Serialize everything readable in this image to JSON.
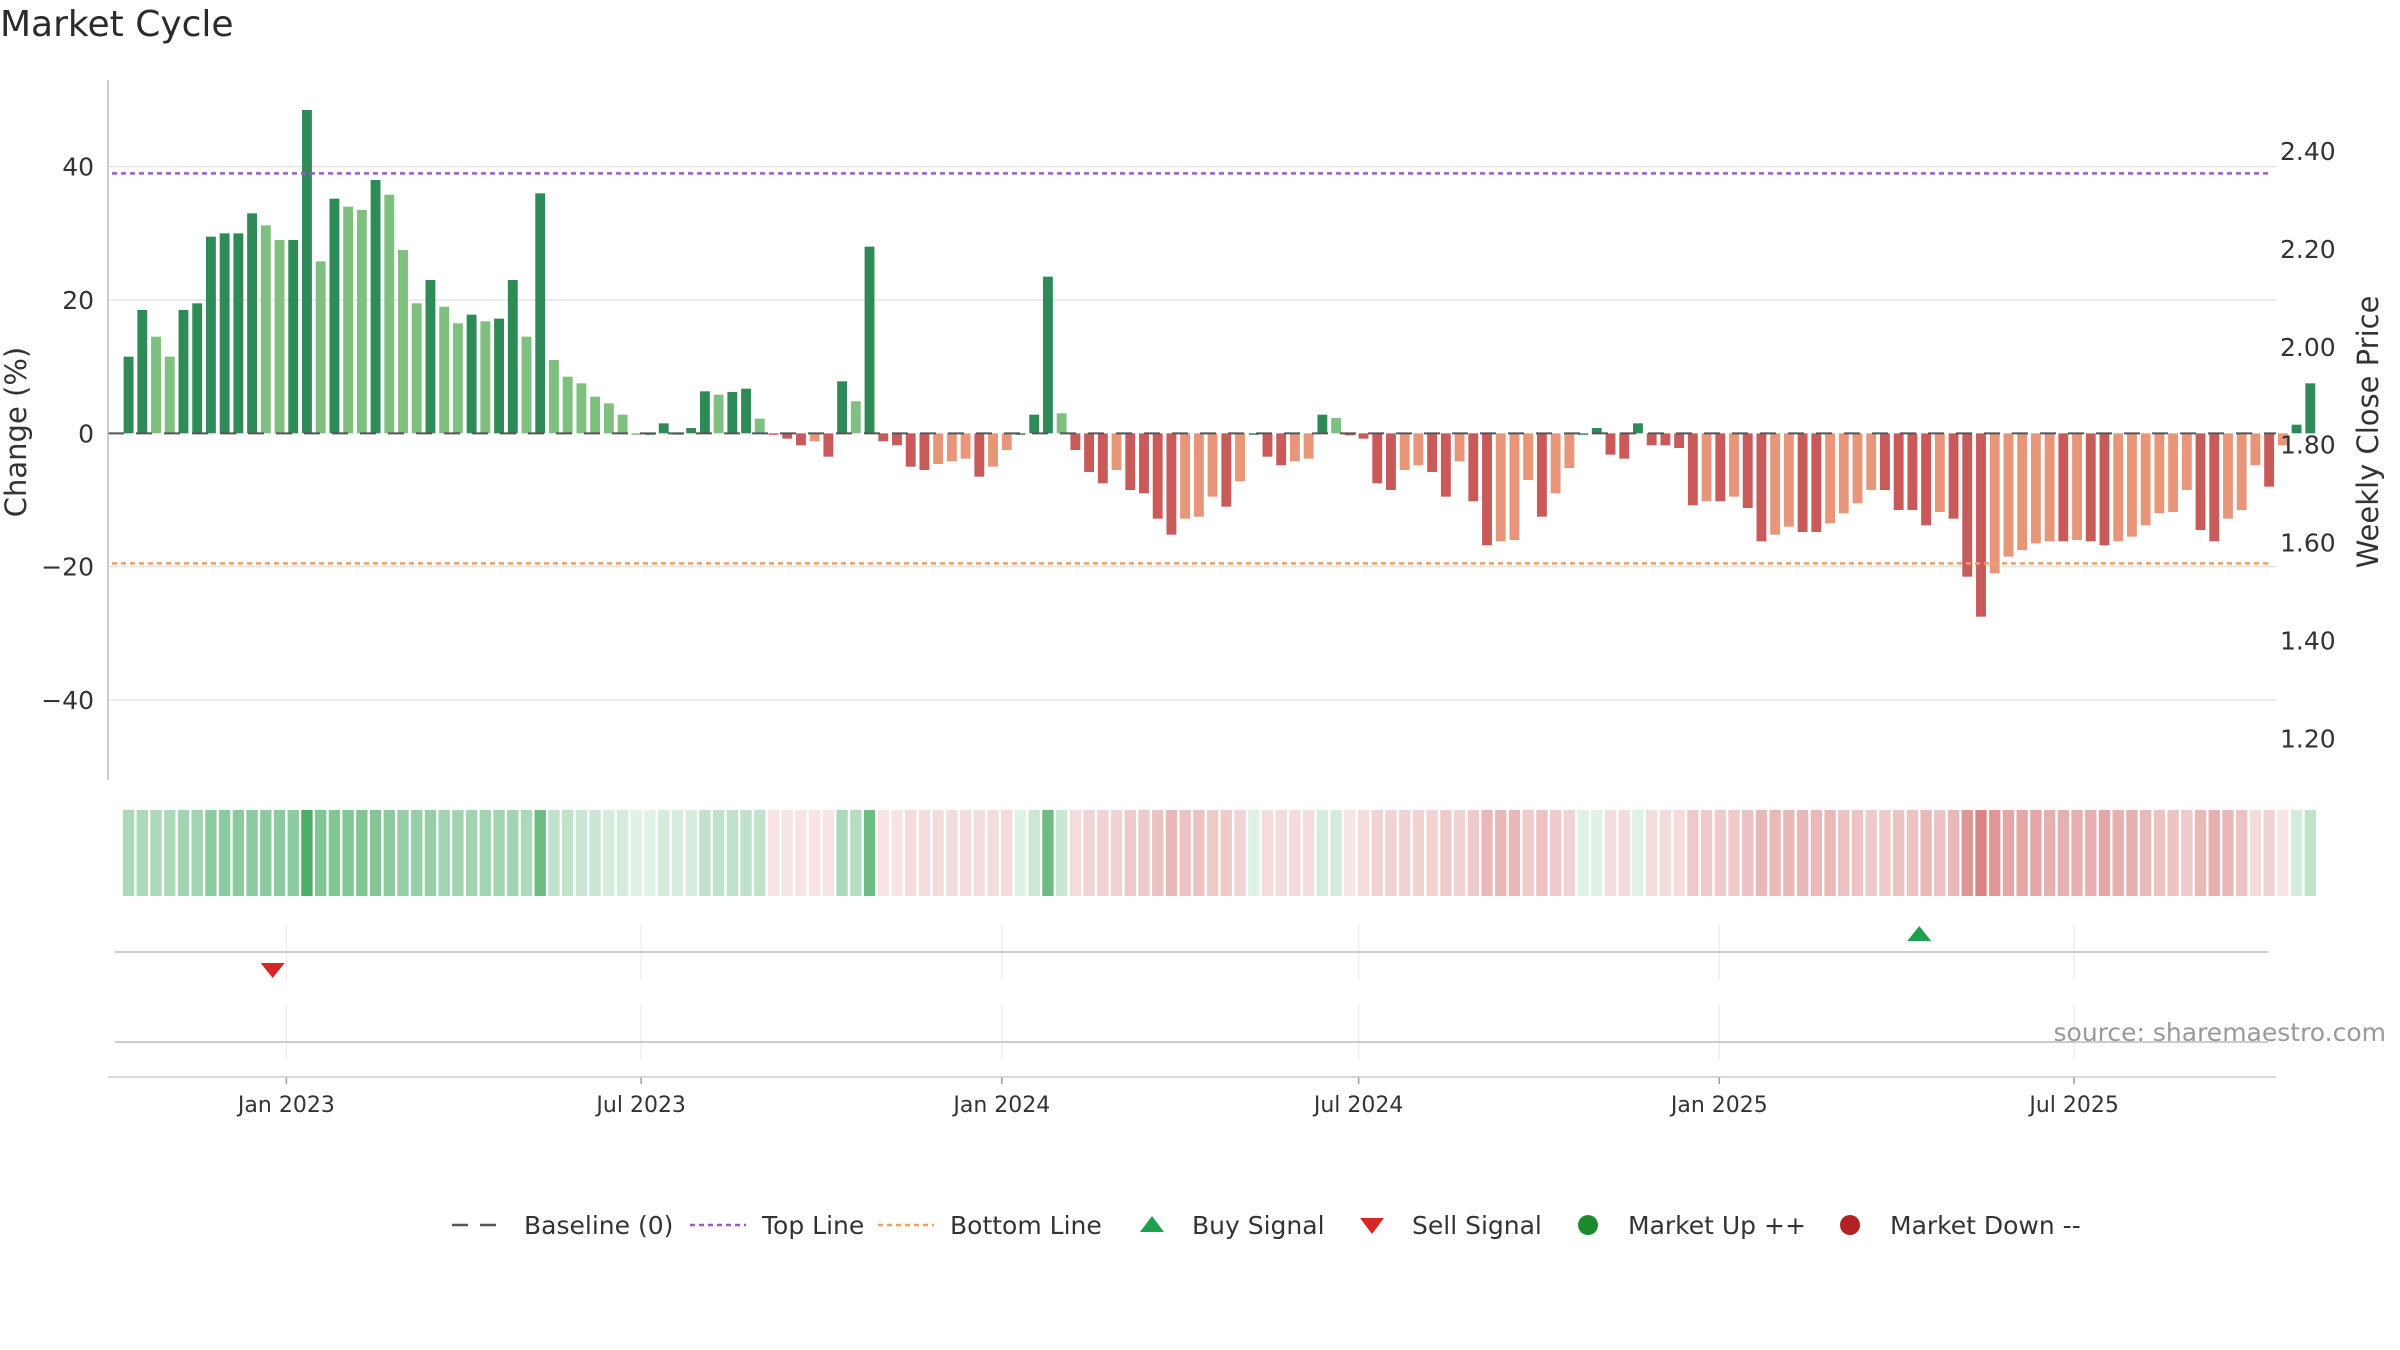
{
  "title": "Market Cycle",
  "source": "source: sharemaestro.com",
  "colors": {
    "up_dark": "#2e8b57",
    "up_light": "#7fbf7f",
    "down_dark": "#c85a5a",
    "down_light": "#e8967a",
    "top_line": "#9b59d0",
    "bottom_line": "#f0a060",
    "buy": "#1fa050",
    "sell": "#d62728"
  },
  "legend": [
    {
      "key": "baseline",
      "label": "Baseline (0)"
    },
    {
      "key": "top",
      "label": "Top Line"
    },
    {
      "key": "bottom",
      "label": "Bottom Line"
    },
    {
      "key": "buy",
      "label": "Buy Signal"
    },
    {
      "key": "sell",
      "label": "Sell Signal"
    },
    {
      "key": "mup",
      "label": "Market Up ++"
    },
    {
      "key": "mdown",
      "label": "Market Down --"
    }
  ],
  "chart_data": {
    "type": "bar",
    "title": "Market Cycle",
    "ylabel": "Change (%)",
    "y2label": "Weekly Close Price",
    "ylim": [
      -52,
      53
    ],
    "y2lim": [
      1.115,
      2.545
    ],
    "yticks": [
      40,
      20,
      0,
      -20,
      -40
    ],
    "yticklabels": [
      "40",
      "20",
      "0",
      "−20",
      "−40"
    ],
    "y2ticks": [
      2.4,
      2.2,
      2.0,
      1.8,
      1.6,
      1.4,
      1.2
    ],
    "y2ticklabels": [
      "2.40",
      "2.20",
      "2.00",
      "1.80",
      "1.60",
      "1.40",
      "1.20"
    ],
    "top_line": 39,
    "bottom_line": -19.5,
    "grid": true,
    "legend_position": "bottom",
    "x_start": "2022-10-02",
    "x_end": "2025-10-12",
    "week_start": "2022-10-09",
    "xticks": [
      {
        "date": "2023-01-01",
        "label": "Jan 2023"
      },
      {
        "date": "2023-07-01",
        "label": "Jul 2023"
      },
      {
        "date": "2024-01-01",
        "label": "Jan 2024"
      },
      {
        "date": "2024-07-01",
        "label": "Jul 2024"
      },
      {
        "date": "2025-01-01",
        "label": "Jan 2025"
      },
      {
        "date": "2025-07-01",
        "label": "Jul 2025"
      }
    ],
    "weekly_change": [
      11.5,
      18.5,
      14.5,
      11.5,
      18.5,
      19.5,
      29.5,
      30,
      30,
      33,
      31.2,
      29,
      29,
      48.5,
      25.8,
      35.2,
      34,
      33.5,
      38,
      35.8,
      27.5,
      19.5,
      23,
      19,
      16.5,
      17.8,
      16.8,
      17.2,
      23,
      14.5,
      36,
      11,
      8.5,
      7.5,
      5.5,
      4.5,
      2.8,
      0,
      0,
      1.5,
      0,
      0.8,
      6.3,
      5.8,
      6.2,
      6.7,
      2.2,
      -0.2,
      -0.8,
      -1.8,
      -1.2,
      -3.5,
      7.8,
      4.8,
      28,
      -1.2,
      -1.8,
      -5,
      -5.5,
      -4.6,
      -4.2,
      -3.8,
      -6.5,
      -5,
      -2.5,
      0,
      2.8,
      23.5,
      3,
      -2.5,
      -5.8,
      -7.5,
      -5.5,
      -8.5,
      -9,
      -12.8,
      -15.2,
      -12.8,
      -12.5,
      -9.5,
      -11,
      -7.2,
      0,
      -3.5,
      -4.8,
      -4.2,
      -3.8,
      2.8,
      2.3,
      -0.3,
      -0.8,
      -7.5,
      -8.5,
      -5.5,
      -4.8,
      -5.8,
      -9.5,
      -4.2,
      -10.2,
      -16.8,
      -16.2,
      -16,
      -7,
      -12.5,
      -9,
      -5.2,
      0,
      0.8,
      -3.2,
      -3.8,
      1.5,
      -1.8,
      -1.8,
      -2.2,
      -10.8,
      -10.2,
      -10.2,
      -9.5,
      -11.2,
      -16.2,
      -15.2,
      -14,
      -14.8,
      -14.8,
      -13.5,
      -12,
      -10.5,
      -8.5,
      -8.5,
      -11.5,
      -11.5,
      -13.8,
      -11.8,
      -12.8,
      -21.5,
      -27.5,
      -21,
      -18.5,
      -17.5,
      -16.5,
      -16.2,
      -16.2,
      -16,
      -16.2,
      -16.8,
      -16.2,
      -15.5,
      -13.8,
      -12,
      -11.8,
      -8.5,
      -14.5,
      -16.2,
      -12.8,
      -11.5,
      -4.8,
      -8,
      -1.8,
      1.3,
      7.5
    ],
    "strip_tone": [
      0.4,
      0.4,
      0.4,
      0.4,
      0.45,
      0.45,
      0.55,
      0.55,
      0.55,
      0.55,
      0.55,
      0.55,
      0.55,
      0.85,
      0.6,
      0.6,
      0.6,
      0.6,
      0.6,
      0.55,
      0.5,
      0.5,
      0.5,
      0.45,
      0.45,
      0.45,
      0.45,
      0.45,
      0.45,
      0.4,
      0.7,
      0.3,
      0.3,
      0.25,
      0.25,
      0.2,
      0.2,
      0.15,
      0.15,
      0.2,
      0.2,
      0.2,
      0.3,
      0.3,
      0.3,
      0.3,
      0.3,
      0.15,
      0.15,
      0.15,
      0.15,
      0.15,
      0.4,
      0.35,
      0.7,
      0.15,
      0.15,
      0.2,
      0.2,
      0.2,
      0.2,
      0.2,
      0.2,
      0.2,
      0.2,
      0.15,
      0.25,
      0.7,
      0.25,
      0.2,
      0.25,
      0.25,
      0.25,
      0.3,
      0.3,
      0.35,
      0.4,
      0.35,
      0.35,
      0.3,
      0.3,
      0.25,
      0.15,
      0.2,
      0.2,
      0.2,
      0.2,
      0.2,
      0.2,
      0.15,
      0.2,
      0.25,
      0.25,
      0.25,
      0.25,
      0.25,
      0.3,
      0.25,
      0.3,
      0.4,
      0.4,
      0.4,
      0.3,
      0.35,
      0.3,
      0.25,
      0.15,
      0.15,
      0.2,
      0.2,
      0.15,
      0.2,
      0.2,
      0.2,
      0.3,
      0.3,
      0.3,
      0.3,
      0.35,
      0.4,
      0.4,
      0.4,
      0.4,
      0.4,
      0.4,
      0.35,
      0.35,
      0.3,
      0.3,
      0.35,
      0.35,
      0.4,
      0.35,
      0.4,
      0.6,
      0.7,
      0.6,
      0.5,
      0.5,
      0.5,
      0.45,
      0.45,
      0.45,
      0.45,
      0.5,
      0.45,
      0.45,
      0.4,
      0.35,
      0.35,
      0.3,
      0.4,
      0.45,
      0.4,
      0.35,
      0.2,
      0.25,
      0.15,
      0.2,
      0.3
    ],
    "sell_signals": [
      "2022-12-25"
    ],
    "buy_signals": [
      "2025-04-13"
    ]
  }
}
